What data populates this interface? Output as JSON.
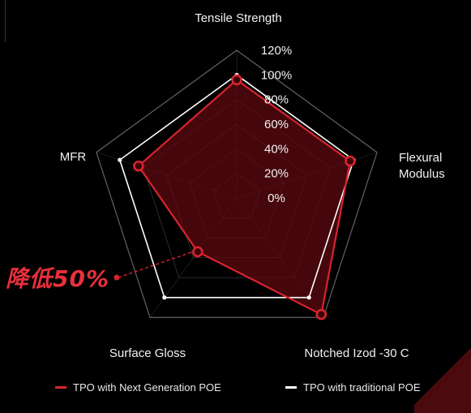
{
  "chart_data": {
    "type": "radar",
    "axes": [
      "Tensile Strength",
      "Flexural\nModulus",
      "Notched Izod -30 C",
      "Surface Gloss",
      "MFR"
    ],
    "tick_labels": [
      "0%",
      "20%",
      "40%",
      "60%",
      "80%",
      "100%",
      "120%"
    ],
    "range": [
      0,
      120
    ],
    "series": [
      {
        "name": "TPO with Next Generation POE",
        "values": [
          96,
          97,
          117,
          54,
          84
        ]
      },
      {
        "name": "TPO with traditional POE",
        "values": [
          100,
          100,
          100,
          100,
          100
        ]
      }
    ],
    "annotation": "降低50%"
  },
  "colors": {
    "red": "#d8242e",
    "white": "#ffffff",
    "fill_red": "#5e0a10",
    "grid": "#6e6e6e"
  }
}
